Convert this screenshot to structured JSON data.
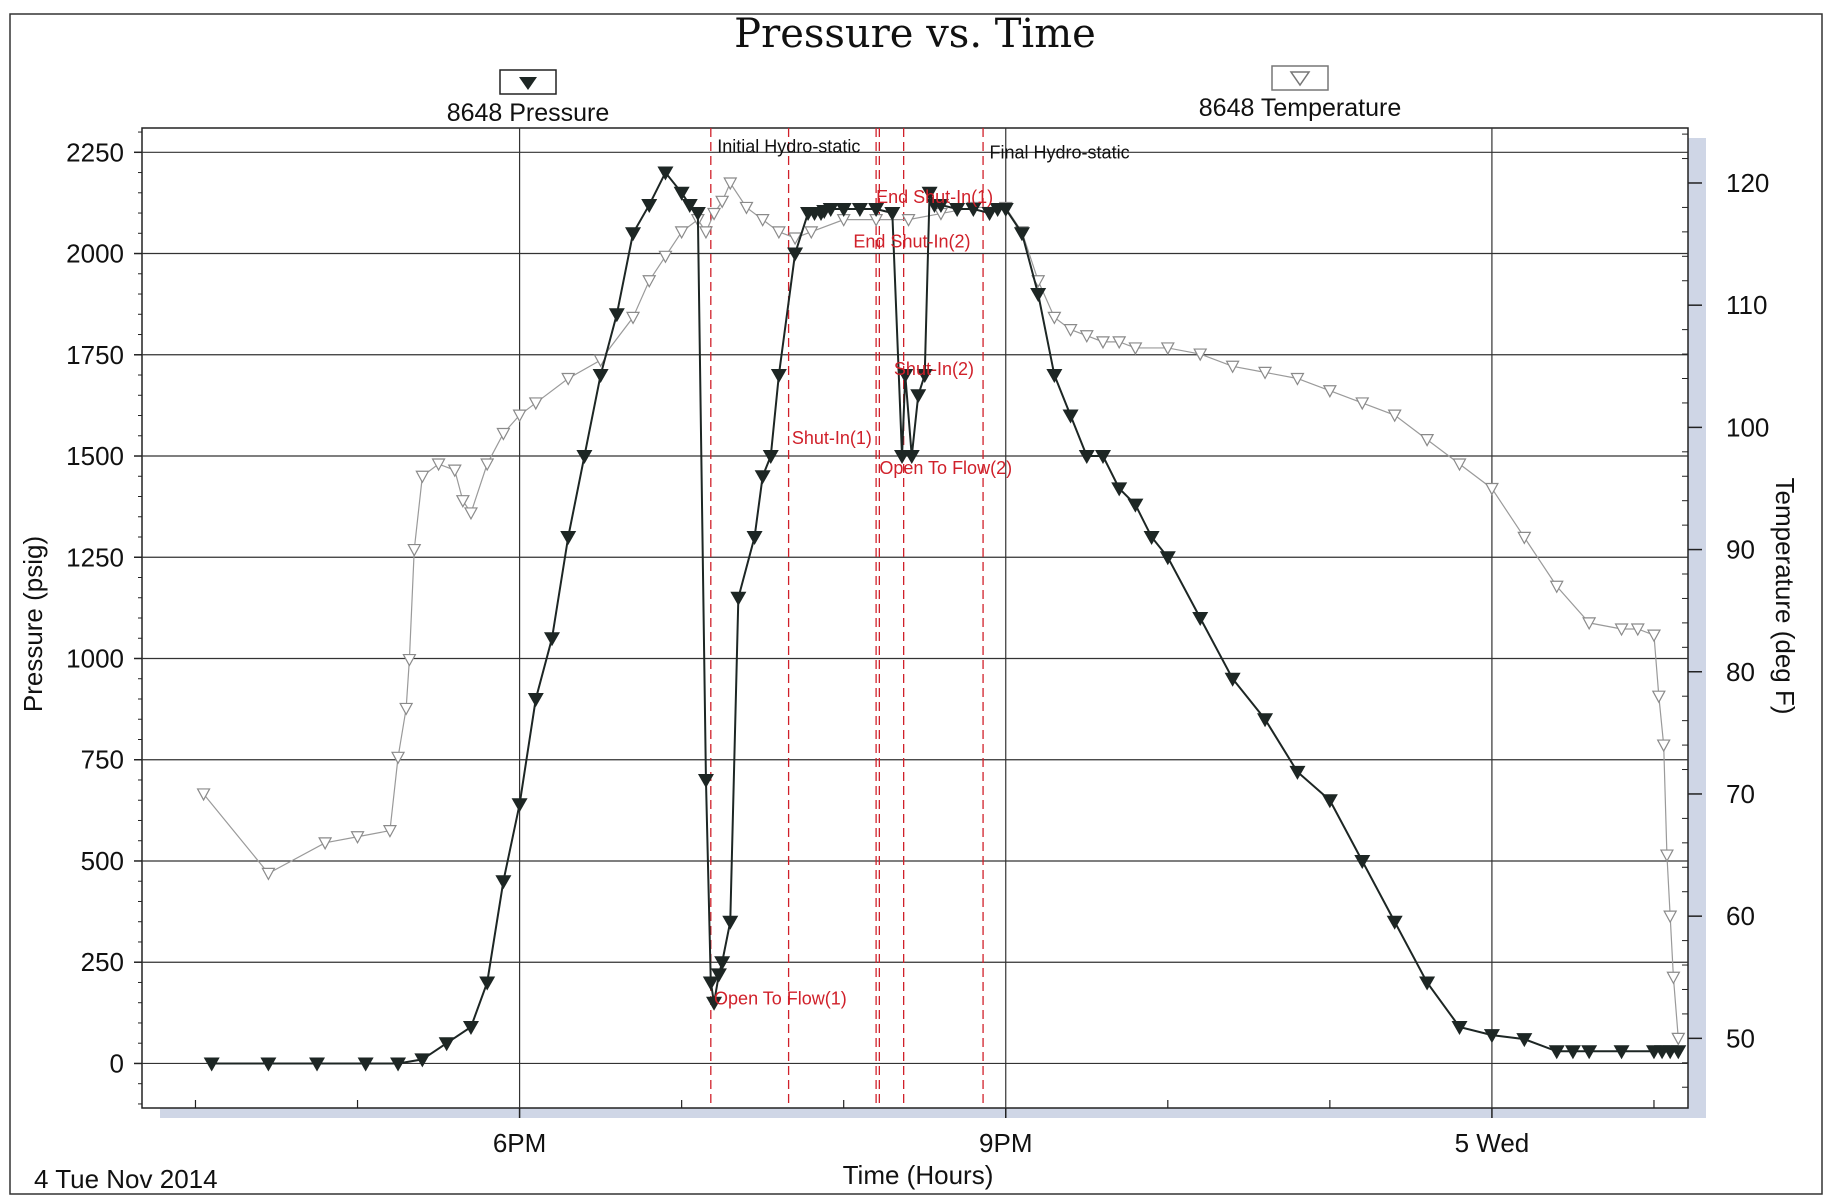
{
  "chart_data": {
    "type": "line",
    "title": "Pressure vs. Time",
    "xlabel": "Time (Hours)",
    "ylabel": "Pressure (psig)",
    "y2label": "Temperature (deg F)",
    "date_label": "4 Tue Nov 2014",
    "x_unit": "hours since midnight, 4 Nov 2014",
    "xlim": [
      15.67,
      25.21
    ],
    "ylim": [
      -110,
      2310
    ],
    "y2lim": [
      44.3,
      124.5
    ],
    "x_tick_labels": [
      {
        "x": 18,
        "label": "6PM"
      },
      {
        "x": 21,
        "label": "9PM"
      },
      {
        "x": 24,
        "label": "5 Wed"
      }
    ],
    "x_minor_ticks": [
      16,
      17,
      19,
      20,
      22,
      23,
      25
    ],
    "y_ticks": [
      0,
      250,
      500,
      750,
      1000,
      1250,
      1500,
      1750,
      2000,
      2250
    ],
    "y2_ticks": [
      50,
      60,
      70,
      80,
      90,
      100,
      110,
      120
    ],
    "grid": true,
    "legend": [
      {
        "name": "8648 Pressure",
        "marker": "filled-down-triangle",
        "color": "#1d2624",
        "axis": "left",
        "position": "top-left"
      },
      {
        "name": "8648 Temperature",
        "marker": "open-down-triangle",
        "color": "#9a9a9a",
        "axis": "right",
        "position": "top-right"
      }
    ],
    "series": [
      {
        "name": "8648 Pressure",
        "axis": "left",
        "x": [
          16.1,
          16.45,
          16.75,
          17.05,
          17.25,
          17.4,
          17.55,
          17.7,
          17.8,
          17.9,
          18.0,
          18.1,
          18.2,
          18.3,
          18.4,
          18.5,
          18.6,
          18.7,
          18.8,
          18.9,
          19.0,
          19.05,
          19.1,
          19.15,
          19.18,
          19.2,
          19.23,
          19.25,
          19.3,
          19.35,
          19.45,
          19.5,
          19.55,
          19.6,
          19.7,
          19.78,
          19.82,
          19.86,
          19.88,
          19.92,
          20.0,
          20.1,
          20.2,
          20.3,
          20.36,
          20.38,
          20.42,
          20.46,
          20.5,
          20.53,
          20.56,
          20.6,
          20.7,
          20.8,
          20.9,
          20.95,
          21.0,
          21.1,
          21.2,
          21.3,
          21.4,
          21.5,
          21.6,
          21.7,
          21.8,
          21.9,
          22.0,
          22.2,
          22.4,
          22.6,
          22.8,
          23.0,
          23.2,
          23.4,
          23.6,
          23.8,
          24.0,
          24.2,
          24.4,
          24.5,
          24.6,
          24.8,
          25.0,
          25.05,
          25.1,
          25.15
        ],
        "y": [
          0,
          0,
          0,
          0,
          0,
          10,
          50,
          90,
          200,
          450,
          640,
          900,
          1050,
          1300,
          1500,
          1700,
          1850,
          2050,
          2120,
          2200,
          2150,
          2120,
          2100,
          700,
          200,
          150,
          220,
          250,
          350,
          1150,
          1300,
          1450,
          1500,
          1700,
          2000,
          2100,
          2100,
          2100,
          2105,
          2110,
          2110,
          2110,
          2110,
          2100,
          1500,
          1700,
          1500,
          1650,
          1700,
          2150,
          2120,
          2120,
          2110,
          2110,
          2100,
          2110,
          2110,
          2050,
          1900,
          1700,
          1600,
          1500,
          1500,
          1420,
          1380,
          1300,
          1250,
          1100,
          950,
          850,
          720,
          650,
          500,
          350,
          200,
          90,
          70,
          60,
          30,
          30,
          30,
          30,
          30,
          30,
          30,
          30
        ]
      },
      {
        "name": "8648 Temperature",
        "axis": "right",
        "x": [
          16.05,
          16.45,
          16.8,
          17.0,
          17.2,
          17.25,
          17.3,
          17.32,
          17.35,
          17.4,
          17.5,
          17.6,
          17.65,
          17.7,
          17.8,
          17.9,
          18.0,
          18.1,
          18.3,
          18.5,
          18.7,
          18.8,
          18.9,
          19.0,
          19.1,
          19.15,
          19.2,
          19.25,
          19.3,
          19.4,
          19.5,
          19.6,
          19.7,
          19.8,
          20.0,
          20.2,
          20.4,
          20.6,
          20.8,
          21.0,
          21.1,
          21.2,
          21.3,
          21.4,
          21.5,
          21.6,
          21.7,
          21.8,
          22.0,
          22.2,
          22.4,
          22.6,
          22.8,
          23.0,
          23.2,
          23.4,
          23.6,
          23.8,
          24.0,
          24.2,
          24.4,
          24.6,
          24.8,
          24.9,
          25.0,
          25.03,
          25.06,
          25.08,
          25.1,
          25.12,
          25.15
        ],
        "y": [
          70,
          63.5,
          66,
          66.5,
          67,
          73,
          77,
          81,
          90,
          96,
          97,
          96.5,
          94,
          93,
          97,
          99.5,
          101,
          102,
          104,
          105.5,
          109,
          112,
          114,
          116,
          117,
          116,
          117.5,
          118.5,
          120,
          118,
          117,
          116,
          115.5,
          116,
          117,
          117,
          117,
          117.5,
          118,
          118,
          116,
          112,
          109,
          108,
          107.5,
          107,
          107,
          106.5,
          106.5,
          106,
          105,
          104.5,
          104,
          103,
          102,
          101,
          99,
          97,
          95,
          91,
          87,
          84,
          83.5,
          83.5,
          83,
          78,
          74,
          65,
          60,
          55,
          50
        ]
      }
    ],
    "event_lines": [
      {
        "x": 19.18,
        "label": "Open To Flow(1)"
      },
      {
        "x": 19.66,
        "label": "Shut-In(1)"
      },
      {
        "x": 20.2,
        "label": "Open To Flow(2)"
      },
      {
        "x": 20.22,
        "label": ""
      },
      {
        "x": 20.37,
        "label": "Shut-In(2)"
      },
      {
        "x": 20.86,
        "label": "End Shut-In(1)"
      }
    ],
    "annotations": [
      {
        "text": "Initial Hydro-static",
        "x": 19.22,
        "y": 2250,
        "color": "black"
      },
      {
        "text": "Final Hydro-static",
        "x": 20.9,
        "y": 2235,
        "color": "black"
      },
      {
        "text": "End Shut-In(1)",
        "x": 20.2,
        "y": 2125,
        "color": "red"
      },
      {
        "text": "End Shut-In(2)",
        "x": 20.06,
        "y": 2015,
        "color": "red"
      },
      {
        "text": "Shut-In(2)",
        "x": 20.31,
        "y": 1700,
        "color": "red"
      },
      {
        "text": "Shut-In(1)",
        "x": 19.68,
        "y": 1530,
        "color": "red"
      },
      {
        "text": "Open To Flow(2)",
        "x": 20.22,
        "y": 1455,
        "color": "red"
      },
      {
        "text": "Open To Flow(1)",
        "x": 19.2,
        "y": 145,
        "color": "red"
      }
    ]
  }
}
